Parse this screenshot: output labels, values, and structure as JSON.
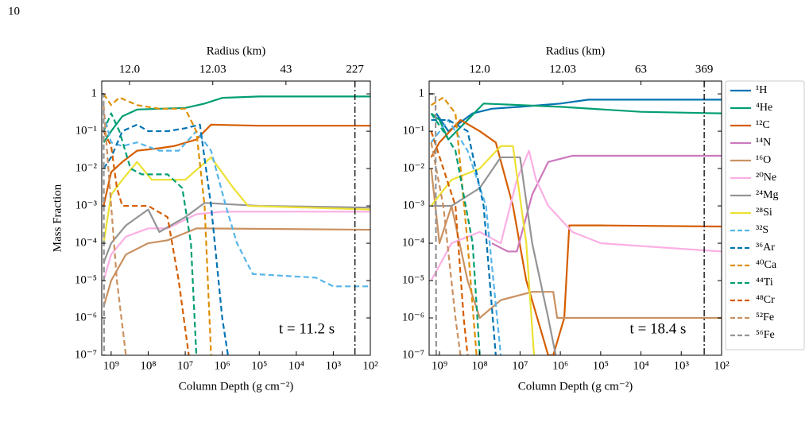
{
  "page_number": "10",
  "chart_data": [
    {
      "type": "line",
      "ylabel": "Mass Fraction",
      "xlabel": "Column Depth (g cm⁻²)",
      "x2label": "Radius (km)",
      "annotation": "t = 11.2 s",
      "xscale": "log",
      "yscale": "log",
      "xlim": [
        1800000000.0,
        100
      ],
      "ylim": [
        1e-07,
        2.2
      ],
      "xticks": [
        {
          "value": 1000000000.0,
          "label": "10⁹"
        },
        {
          "value": 100000000.0,
          "label": "10⁸"
        },
        {
          "value": 10000000.0,
          "label": "10⁷"
        },
        {
          "value": 1000000.0,
          "label": "10⁶"
        },
        {
          "value": 100000.0,
          "label": "10⁵"
        },
        {
          "value": 10000.0,
          "label": "10⁴"
        },
        {
          "value": 1000.0,
          "label": "10³"
        },
        {
          "value": 100,
          "label": "10²"
        }
      ],
      "yticks": [
        1,
        {
          "value": 0.1,
          "label": "10⁻¹"
        },
        {
          "value": 0.01,
          "label": "10⁻²"
        },
        {
          "value": 0.001,
          "label": "10⁻³"
        },
        {
          "value": 0.0001,
          "label": "10⁻⁴"
        },
        {
          "value": 1e-05,
          "label": "10⁻⁵"
        },
        {
          "value": 1e-06,
          "label": "10⁻⁶"
        },
        {
          "value": 1e-07,
          "label": "10⁻⁷"
        }
      ],
      "x2ticks": [
        {
          "value": 12.0,
          "label": "12.0"
        },
        {
          "value": 12.03,
          "label": "12.03"
        },
        43,
        227
      ],
      "x2tick_depths": [
        320000000.0,
        1800000.0,
        19000.0,
        260
      ],
      "vline": 260,
      "series": [
        {
          "name": "⁴He",
          "color": "#029e73",
          "dashed": false,
          "x": [
            1600000000.0,
            1000000000.0,
            500000000.0,
            200000000.0,
            50000000.0,
            10000000.0,
            3000000.0,
            1000000.0,
            100000.0,
            100
          ],
          "values": [
            0.05,
            0.1,
            0.25,
            0.38,
            0.4,
            0.42,
            0.55,
            0.78,
            0.85,
            0.85
          ]
        },
        {
          "name": "¹²C",
          "color": "#d55e00",
          "dashed": false,
          "x": [
            1600000000.0,
            1000000000.0,
            500000000.0,
            200000000.0,
            50000000.0,
            20000000.0,
            5000000.0,
            2000000.0,
            100000.0,
            100
          ],
          "values": [
            0.001,
            0.008,
            0.015,
            0.03,
            0.035,
            0.04,
            0.06,
            0.15,
            0.14,
            0.14
          ]
        },
        {
          "name": "¹⁶O",
          "color": "#ca9161",
          "dashed": false,
          "x": [
            1600000000.0,
            1000000000.0,
            400000000.0,
            100000000.0,
            30000000.0,
            5000000.0,
            100
          ],
          "values": [
            2e-06,
            1e-05,
            5e-05,
            0.0001,
            0.00012,
            0.00025,
            0.00023
          ]
        },
        {
          "name": "²⁰Ne",
          "color": "#fbafe4",
          "dashed": false,
          "x": [
            1600000000.0,
            1000000000.0,
            400000000.0,
            100000000.0,
            30000000.0,
            5000000.0,
            1000000.0,
            100
          ],
          "values": [
            1e-05,
            5e-05,
            0.00015,
            0.00025,
            0.00025,
            0.0006,
            0.0007,
            0.0007
          ]
        },
        {
          "name": "²⁴Mg",
          "color": "#949494",
          "dashed": false,
          "x": [
            1600000000.0,
            1000000000.0,
            400000000.0,
            100000000.0,
            50000000.0,
            10000000.0,
            3000000.0,
            100000.0,
            100
          ],
          "values": [
            3e-05,
            0.0001,
            0.0003,
            0.0008,
            0.0002,
            0.0005,
            0.0012,
            0.001,
            0.0009
          ]
        },
        {
          "name": "²⁸Si",
          "color": "#ece133",
          "dashed": false,
          "x": [
            1600000000.0,
            1000000000.0,
            500000000.0,
            200000000.0,
            80000000.0,
            10000000.0,
            2000000.0,
            500000.0,
            200000.0,
            100
          ],
          "values": [
            0.0001,
            0.002,
            0.005,
            0.015,
            0.005,
            0.005,
            0.02,
            0.003,
            0.001,
            0.0008
          ]
        },
        {
          "name": "³²S",
          "color": "#56b4e9",
          "dashed": true,
          "x": [
            1600000000.0,
            1000000000.0,
            500000000.0,
            200000000.0,
            50000000.0,
            15000000.0,
            5000000.0,
            2000000.0,
            800000.0,
            400000.0,
            150000.0,
            3000.0,
            1000.0,
            100
          ],
          "values": [
            0.3,
            0.05,
            0.04,
            0.05,
            0.03,
            0.03,
            0.1,
            0.03,
            0.001,
            0.0001,
            1.5e-05,
            1.2e-05,
            7e-06,
            7e-06
          ]
        },
        {
          "name": "³⁶Ar",
          "color": "#0173b2",
          "dashed": true,
          "x": [
            1600000000.0,
            1000000000.0,
            500000000.0,
            200000000.0,
            100000000.0,
            30000000.0,
            10000000.0,
            4000000.0,
            2000000.0,
            1000000.0,
            700000.0
          ],
          "values": [
            0.01,
            0.02,
            0.1,
            0.15,
            0.1,
            0.1,
            0.12,
            0.15,
            0.001,
            1e-06,
            1e-07
          ]
        },
        {
          "name": "⁴⁰Ca",
          "color": "#de8f05",
          "dashed": true,
          "x": [
            1600000000.0,
            1000000000.0,
            600000000.0,
            200000000.0,
            50000000.0,
            10000000.0,
            5000000.0,
            3000000.0,
            2000000.0
          ],
          "values": [
            1,
            0.5,
            0.8,
            0.5,
            0.4,
            0.4,
            0.1,
            0.001,
            1e-07
          ]
        },
        {
          "name": "⁴⁴Ti",
          "color": "#029e73",
          "dashed": true,
          "x": [
            1600000000.0,
            1000000000.0,
            600000000.0,
            300000000.0,
            150000000.0,
            30000000.0,
            12000000.0,
            7000000.0,
            5000000.0
          ],
          "values": [
            0.1,
            0.3,
            0.1,
            0.01,
            0.007,
            0.007,
            0.003,
            0.0001,
            1e-07
          ]
        },
        {
          "name": "⁴⁸Cr",
          "color": "#d55e00",
          "dashed": true,
          "x": [
            1600000000.0,
            1000000000.0,
            700000000.0,
            500000000.0,
            100000000.0,
            30000000.0,
            15000000.0,
            8000000.0
          ],
          "values": [
            0.1,
            0.04,
            0.003,
            0.001,
            0.001,
            0.0005,
            1e-05,
            1e-07
          ]
        },
        {
          "name": "⁵²Fe",
          "color": "#ca9161",
          "dashed": true,
          "x": [
            1600000000.0,
            1000000000.0,
            700000000.0,
            400000000.0
          ],
          "values": [
            0.5,
            0.001,
            1e-05,
            1e-07
          ]
        },
        {
          "name": "⁵⁶Fe",
          "color": "#949494",
          "dashed": true,
          "x": [
            1800000000.0,
            1600000000.0,
            1550000000.0
          ],
          "values": [
            1,
            1,
            1e-07
          ]
        }
      ]
    },
    {
      "type": "line",
      "xlabel": "Column Depth (g cm⁻²)",
      "x2label": "Radius (km)",
      "annotation": "t = 18.4 s",
      "xscale": "log",
      "yscale": "log",
      "legend": "outside right",
      "xlim": [
        1800000000.0,
        100
      ],
      "ylim": [
        1e-07,
        2.2
      ],
      "xticks": [
        {
          "value": 1000000000.0,
          "label": "10⁹"
        },
        {
          "value": 100000000.0,
          "label": "10⁸"
        },
        {
          "value": 10000000.0,
          "label": "10⁷"
        },
        {
          "value": 1000000.0,
          "label": "10⁶"
        },
        {
          "value": 100000.0,
          "label": "10⁵"
        },
        {
          "value": 10000.0,
          "label": "10⁴"
        },
        {
          "value": 1000.0,
          "label": "10³"
        },
        {
          "value": 100,
          "label": "10²"
        }
      ],
      "yticks": [
        1,
        {
          "value": 0.1,
          "label": "10⁻¹"
        },
        {
          "value": 0.01,
          "label": "10⁻²"
        },
        {
          "value": 0.001,
          "label": "10⁻³"
        },
        {
          "value": 0.0001,
          "label": "10⁻⁴"
        },
        {
          "value": 1e-05,
          "label": "10⁻⁵"
        },
        {
          "value": 1e-06,
          "label": "10⁻⁶"
        },
        {
          "value": 1e-07,
          "label": "10⁻⁷"
        }
      ],
      "x2ticks": [
        {
          "value": 12.0,
          "label": "12.0"
        },
        {
          "value": 12.03,
          "label": "12.03"
        },
        63,
        369
      ],
      "x2tick_depths": [
        100000000.0,
        870000.0,
        10000.0,
        270
      ],
      "vline": 270,
      "series": [
        {
          "name": "¹H",
          "color": "#0173b2",
          "dashed": false,
          "x": [
            1200000000.0,
            600000000.0,
            150000000.0,
            50000000.0,
            10000000.0,
            1000000.0,
            200000.0,
            100
          ],
          "values": [
            0.3,
            0.1,
            0.3,
            0.4,
            0.45,
            0.55,
            0.7,
            0.7
          ]
        },
        {
          "name": "⁴He",
          "color": "#029e73",
          "dashed": false,
          "x": [
            1600000000.0,
            1000000000.0,
            600000000.0,
            200000000.0,
            80000000.0,
            10000000.0,
            1000000.0,
            10000.0,
            100
          ],
          "values": [
            0.3,
            0.2,
            0.06,
            0.2,
            0.55,
            0.5,
            0.45,
            0.33,
            0.3
          ]
        },
        {
          "name": "¹²C",
          "color": "#d55e00",
          "dashed": false,
          "x": [
            1600000000.0,
            1000000000.0,
            300000000.0,
            100000000.0,
            40000000.0,
            15000000.0,
            7000000.0,
            2000000.0,
            1500000.0,
            800000.0,
            600000.0,
            100000.0,
            100
          ],
          "values": [
            0.02,
            0.05,
            0.2,
            0.1,
            0.05,
            0.001,
            1e-05,
            1e-07,
            1e-07,
            1e-06,
            0.0003,
            0.0003,
            0.00028
          ]
        },
        {
          "name": "¹⁴N",
          "color": "#cc78bc",
          "dashed": false,
          "x": [
            50000000.0,
            20000000.0,
            12000000.0,
            5000000.0,
            2000000.0,
            500000.0,
            100
          ],
          "values": [
            0.0001,
            6e-05,
            6e-05,
            0.002,
            0.015,
            0.022,
            0.022
          ]
        },
        {
          "name": "¹⁶O",
          "color": "#ca9161",
          "dashed": false,
          "x": [
            1600000000.0,
            1000000000.0,
            500000000.0,
            200000000.0,
            100000000.0,
            30000000.0,
            5000000.0,
            1500000.0,
            1200000.0,
            100
          ],
          "values": [
            0.01,
            0.0001,
            0.001,
            1e-05,
            1e-06,
            3e-06,
            5e-06,
            5e-06,
            1e-06,
            1e-06
          ]
        },
        {
          "name": "²⁰Ne",
          "color": "#fbafe4",
          "dashed": false,
          "x": [
            1600000000.0,
            500000000.0,
            100000000.0,
            30000000.0,
            12000000.0,
            6000000.0,
            4000000.0,
            2000000.0,
            500000.0,
            100000.0,
            100
          ],
          "values": [
            1e-05,
            0.0001,
            0.0002,
            0.0001,
            0.005,
            0.03,
            0.005,
            0.001,
            0.0002,
            0.0001,
            6e-05
          ]
        },
        {
          "name": "²⁴Mg",
          "color": "#949494",
          "dashed": false,
          "x": [
            1600000000.0,
            500000000.0,
            100000000.0,
            30000000.0,
            10000000.0,
            5000000.0,
            2000000.0,
            1300000.0
          ],
          "values": [
            0.001,
            0.001,
            0.003,
            0.02,
            0.02,
            0.0001,
            1e-06,
            1e-07
          ]
        },
        {
          "name": "²⁸Si",
          "color": "#ece133",
          "dashed": false,
          "x": [
            1600000000.0,
            500000000.0,
            100000000.0,
            30000000.0,
            15000000.0,
            7000000.0,
            4500000.0
          ],
          "values": [
            0.001,
            0.005,
            0.01,
            0.04,
            0.04,
            0.0001,
            1e-07
          ]
        },
        {
          "name": "³²S",
          "color": "#56b4e9",
          "dashed": true,
          "x": [
            1600000000.0,
            600000000.0,
            200000000.0,
            70000000.0,
            30000000.0
          ],
          "values": [
            0.05,
            0.2,
            0.03,
            0.001,
            1e-07
          ]
        },
        {
          "name": "³⁶Ar",
          "color": "#0173b2",
          "dashed": true,
          "x": [
            1600000000.0,
            600000000.0,
            200000000.0,
            80000000.0,
            40000000.0
          ],
          "values": [
            0.2,
            0.2,
            0.1,
            0.001,
            1e-07
          ]
        },
        {
          "name": "⁴⁰Ca",
          "color": "#de8f05",
          "dashed": true,
          "x": [
            1600000000.0,
            800000000.0,
            400000000.0,
            200000000.0,
            120000000.0
          ],
          "values": [
            0.5,
            0.8,
            0.3,
            0.0001,
            1e-07
          ]
        },
        {
          "name": "⁴⁴Ti",
          "color": "#029e73",
          "dashed": true,
          "x": [
            1600000000.0,
            800000000.0,
            400000000.0,
            150000000.0,
            100000000.0
          ],
          "values": [
            0.3,
            0.1,
            0.03,
            0.0001,
            1e-07
          ]
        },
        {
          "name": "⁴⁸Cr",
          "color": "#d55e00",
          "dashed": true,
          "x": [
            1600000000.0,
            800000000.0,
            400000000.0,
            250000000.0,
            200000000.0
          ],
          "values": [
            0.1,
            0.01,
            0.001,
            1e-06,
            1e-07
          ]
        },
        {
          "name": "⁵²Fe",
          "color": "#ca9161",
          "dashed": true,
          "x": [
            1600000000.0,
            800000000.0,
            400000000.0,
            300000000.0
          ],
          "values": [
            0.05,
            0.001,
            1e-06,
            1e-07
          ]
        },
        {
          "name": "⁵⁶Fe",
          "color": "#949494",
          "dashed": true,
          "x": [
            1800000000.0,
            1250000000.0,
            1200000000.0
          ],
          "values": [
            1,
            1,
            1e-07
          ]
        }
      ]
    }
  ]
}
